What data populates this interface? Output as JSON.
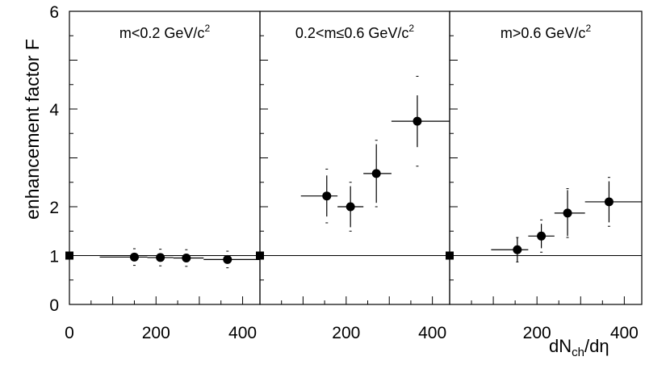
{
  "chart_data": {
    "type": "scatter",
    "ylabel": "enhancement factor  F",
    "xlabel_main": "dN",
    "xlabel_sub": "ch",
    "xlabel_tail": "/dη",
    "ylim": [
      0,
      6
    ],
    "yticks": [
      {
        "value": 0,
        "label": "0"
      },
      {
        "value": 1,
        "label": "1"
      },
      {
        "value": 2,
        "label": "2"
      },
      {
        "value": 4,
        "label": "4"
      },
      {
        "value": 6,
        "label": "6"
      }
    ],
    "xlim": [
      0,
      440
    ],
    "reference_value": 1,
    "panels": [
      {
        "title_main": "m<0.2 GeV/c",
        "title_sup": "2",
        "xticks": [
          {
            "value": 0,
            "label": "0"
          },
          {
            "value": 200,
            "label": "200"
          },
          {
            "value": 400,
            "label": "400"
          }
        ],
        "points": [
          {
            "x": 150,
            "y": 0.97,
            "xlo": 70,
            "xhi": 180,
            "stat": 0.05,
            "sys": 0.17
          },
          {
            "x": 210,
            "y": 0.96,
            "xlo": 180,
            "xhi": 240,
            "stat": 0.05,
            "sys": 0.17
          },
          {
            "x": 270,
            "y": 0.95,
            "xlo": 240,
            "xhi": 310,
            "stat": 0.05,
            "sys": 0.17
          },
          {
            "x": 365,
            "y": 0.92,
            "xlo": 310,
            "xhi": 440,
            "stat": 0.05,
            "sys": 0.17
          }
        ]
      },
      {
        "title_main": "0.2<m≤0.6 GeV/c",
        "title_sup": "2",
        "xticks": [
          {
            "value": 200,
            "label": "200"
          },
          {
            "value": 400,
            "label": "400"
          }
        ],
        "points": [
          {
            "x": 155,
            "y": 2.22,
            "xlo": 95,
            "xhi": 180,
            "stat": 0.42,
            "sys": 0.55
          },
          {
            "x": 210,
            "y": 2.0,
            "xlo": 180,
            "xhi": 240,
            "stat": 0.42,
            "sys": 0.5
          },
          {
            "x": 270,
            "y": 2.68,
            "xlo": 240,
            "xhi": 305,
            "stat": 0.6,
            "sys": 0.68
          },
          {
            "x": 365,
            "y": 3.75,
            "xlo": 305,
            "xhi": 440,
            "stat": 0.53,
            "sys": 0.92
          }
        ]
      },
      {
        "title_main": "m>0.6 GeV/c",
        "title_sup": "2",
        "xticks": [
          {
            "value": 200,
            "label": "200"
          },
          {
            "value": 400,
            "label": "400"
          }
        ],
        "points": [
          {
            "x": 155,
            "y": 1.12,
            "xlo": 95,
            "xhi": 180,
            "stat": 0.25,
            "sys": 0.25
          },
          {
            "x": 210,
            "y": 1.4,
            "xlo": 180,
            "xhi": 240,
            "stat": 0.25,
            "sys": 0.33
          },
          {
            "x": 270,
            "y": 1.87,
            "xlo": 240,
            "xhi": 310,
            "stat": 0.47,
            "sys": 0.5
          },
          {
            "x": 365,
            "y": 2.1,
            "xlo": 310,
            "xhi": 440,
            "stat": 0.42,
            "sys": 0.5
          }
        ]
      }
    ]
  }
}
